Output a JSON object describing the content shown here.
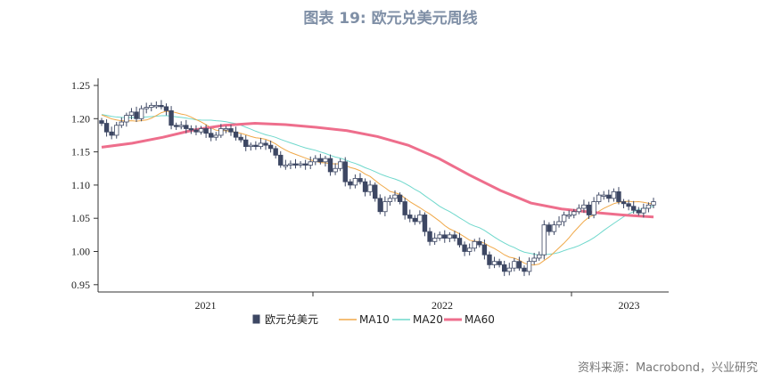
{
  "title": "图表 19: 欧元兑美元周线",
  "source": "资料来源：Macrobond，兴业研究",
  "chart_data": {
    "type": "candlestick",
    "frequency": "weekly",
    "ylim": [
      0.94,
      1.26
    ],
    "yticks": [
      "1.25",
      "1.20",
      "1.15",
      "1.10",
      "1.05",
      "1.00",
      "0.95"
    ],
    "ytick_values": [
      1.25,
      1.2,
      1.15,
      1.1,
      1.05,
      1.0,
      0.95
    ],
    "year_labels": [
      "2021",
      "2022",
      "2023"
    ],
    "year_boundaries_week": [
      43,
      95
    ],
    "legend": [
      "欧元兑美元",
      "MA10",
      "MA20",
      "MA60"
    ],
    "legend_placement": "bottom",
    "colors": {
      "down": "#3d4763",
      "up": "#ffffff",
      "outline": "#3d4763",
      "ma10": "#f0a848",
      "ma20": "#6fd8cc",
      "ma60": "#ee6e8c"
    },
    "closes": [
      1.193,
      1.18,
      1.175,
      1.19,
      1.195,
      1.205,
      1.21,
      1.2,
      1.215,
      1.217,
      1.22,
      1.22,
      1.218,
      1.212,
      1.19,
      1.188,
      1.19,
      1.185,
      1.183,
      1.18,
      1.185,
      1.178,
      1.172,
      1.175,
      1.185,
      1.185,
      1.18,
      1.172,
      1.168,
      1.158,
      1.16,
      1.158,
      1.163,
      1.16,
      1.155,
      1.145,
      1.13,
      1.13,
      1.132,
      1.13,
      1.132,
      1.13,
      1.135,
      1.14,
      1.135,
      1.14,
      1.12,
      1.125,
      1.135,
      1.105,
      1.1,
      1.11,
      1.105,
      1.09,
      1.1,
      1.08,
      1.06,
      1.075,
      1.08,
      1.085,
      1.075,
      1.055,
      1.05,
      1.045,
      1.055,
      1.03,
      1.015,
      1.02,
      1.025,
      1.02,
      1.025,
      1.02,
      1.01,
      1.0,
      1.005,
      1.015,
      1.01,
      0.995,
      0.98,
      0.985,
      0.98,
      0.97,
      0.975,
      0.985,
      0.975,
      0.97,
      0.985,
      0.99,
      0.995,
      1.04,
      1.03,
      1.04,
      1.045,
      1.055,
      1.055,
      1.06,
      1.065,
      1.07,
      1.055,
      1.075,
      1.085,
      1.085,
      1.08,
      1.09,
      1.075,
      1.072,
      1.068,
      1.062,
      1.058,
      1.065,
      1.07,
      1.075
    ],
    "ma60": [
      1.157,
      1.163,
      1.172,
      1.183,
      1.19,
      1.193,
      1.191,
      1.187,
      1.182,
      1.173,
      1.16,
      1.14,
      1.115,
      1.092,
      1.073,
      1.064,
      1.059,
      1.055,
      1.052
    ]
  }
}
